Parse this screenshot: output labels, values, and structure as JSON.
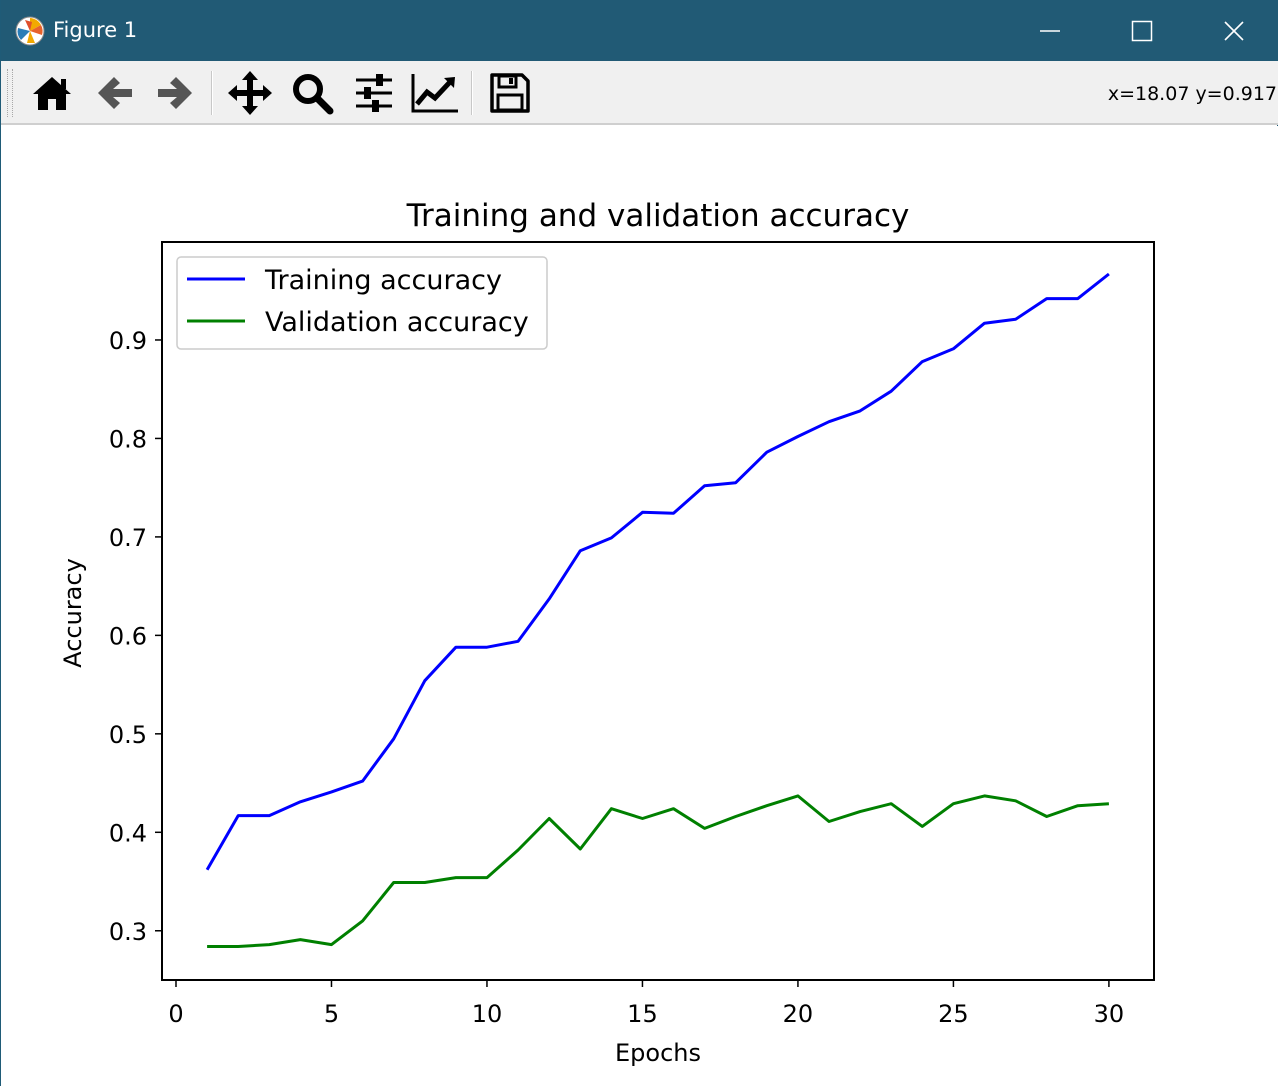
{
  "window": {
    "title": "Figure 1",
    "title_bar_color": "#215a75",
    "controls": [
      "minimize-icon",
      "maximize-icon",
      "close-icon"
    ]
  },
  "toolbar": {
    "buttons": [
      {
        "name": "home",
        "icon": "home-icon"
      },
      {
        "name": "back",
        "icon": "arrow-left-icon"
      },
      {
        "name": "forward",
        "icon": "arrow-right-icon"
      },
      {
        "name": "pan",
        "icon": "move-arrows-icon"
      },
      {
        "name": "zoom",
        "icon": "magnifier-icon"
      },
      {
        "name": "subplots",
        "icon": "sliders-icon"
      },
      {
        "name": "customize",
        "icon": "line-chart-icon"
      },
      {
        "name": "save",
        "icon": "floppy-disk-icon"
      }
    ],
    "coords": "x=18.07 y=0.917"
  },
  "chart_data": {
    "type": "line",
    "title": "Training and validation accuracy",
    "xlabel": "Epochs",
    "ylabel": "Accuracy",
    "xlim": [
      -0.45,
      31.45
    ],
    "ylim": [
      0.25,
      0.9995
    ],
    "xticks": [
      0,
      5,
      10,
      15,
      20,
      25,
      30
    ],
    "xtick_labels": [
      "0",
      "5",
      "10",
      "15",
      "20",
      "25",
      "30"
    ],
    "yticks": [
      0.3,
      0.4,
      0.5,
      0.6,
      0.7,
      0.8,
      0.9
    ],
    "ytick_labels": [
      "0.3",
      "0.4",
      "0.5",
      "0.6",
      "0.7",
      "0.8",
      "0.9"
    ],
    "grid": false,
    "legend_position": "upper-left",
    "x": [
      1,
      2,
      3,
      4,
      5,
      6,
      7,
      8,
      9,
      10,
      11,
      12,
      13,
      14,
      15,
      16,
      17,
      18,
      19,
      20,
      21,
      22,
      23,
      24,
      25,
      26,
      27,
      28,
      29,
      30
    ],
    "series": [
      {
        "name": "Training accuracy",
        "color": "#0000ff",
        "values": [
          0.362,
          0.417,
          0.417,
          0.431,
          0.441,
          0.452,
          0.495,
          0.554,
          0.588,
          0.588,
          0.594,
          0.637,
          0.686,
          0.699,
          0.725,
          0.724,
          0.752,
          0.755,
          0.786,
          0.802,
          0.817,
          0.828,
          0.848,
          0.878,
          0.891,
          0.917,
          0.921,
          0.942,
          0.942,
          0.967
        ]
      },
      {
        "name": "Validation accuracy",
        "color": "#008000",
        "values": [
          0.284,
          0.284,
          0.286,
          0.291,
          0.286,
          0.31,
          0.349,
          0.349,
          0.354,
          0.354,
          0.382,
          0.414,
          0.383,
          0.424,
          0.414,
          0.424,
          0.404,
          0.416,
          0.427,
          0.437,
          0.411,
          0.421,
          0.429,
          0.406,
          0.429,
          0.437,
          0.432,
          0.416,
          0.427,
          0.429
        ]
      }
    ]
  }
}
